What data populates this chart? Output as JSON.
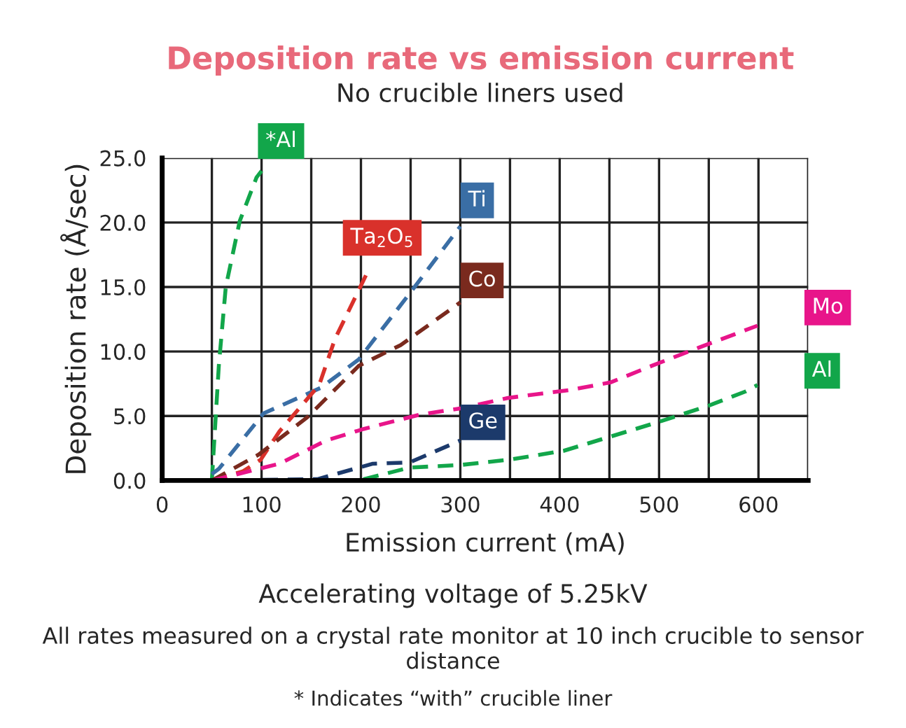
{
  "chart_data": {
    "type": "line",
    "title": "Deposition rate vs emission current",
    "subtitle": "No crucible liners used",
    "xlabel": "Emission current (mA)",
    "ylabel": "Deposition rate (Å/sec)",
    "annotations": [
      "Accelerating voltage of 5.25kV",
      "All rates measured on a crystal rate monitor at 10 inch crucible to sensor distance",
      "* Indicates “with” crucible liner"
    ],
    "xlim": [
      0,
      650
    ],
    "ylim": [
      0,
      25
    ],
    "xticks": [
      0,
      {
        "value": 50,
        "label": null
      },
      100,
      {
        "value": 150,
        "label": null
      },
      200,
      {
        "value": 250,
        "label": null
      },
      300,
      {
        "value": 350,
        "label": null
      },
      400,
      {
        "value": 450,
        "label": null
      },
      500,
      {
        "value": 550,
        "label": null
      },
      600,
      {
        "value": 650,
        "label": null
      }
    ],
    "yticks": [
      {
        "value": 0,
        "label": "0.0"
      },
      {
        "value": 5,
        "label": "5.0"
      },
      {
        "value": 10,
        "label": "10.0"
      },
      {
        "value": 15,
        "label": "15.0"
      },
      {
        "value": 20,
        "label": "20.0"
      },
      {
        "value": 25,
        "label": "25.0"
      }
    ],
    "grid": true,
    "line_style": "dashed",
    "marker": "none",
    "legend": false,
    "series": [
      {
        "name": "*Al",
        "color": "#12a64a",
        "x": [
          50,
          57,
          64,
          78,
          95,
          100
        ],
        "values": [
          0,
          8.9,
          15,
          20.1,
          23.5,
          24
        ]
      },
      {
        "name": "Ti",
        "color": "#3a6ea5",
        "x": [
          50,
          57,
          102,
          160,
          198,
          254,
          300
        ],
        "values": [
          0.5,
          0.9,
          5.2,
          7.2,
          9.4,
          15,
          19.7
        ]
      },
      {
        "name": "Ta$_{2}$O$_{5}$",
        "color": "#d9312b",
        "x": [
          50,
          81,
          99,
          118,
          158,
          174,
          188,
          205
        ],
        "values": [
          0,
          0.7,
          1.6,
          3.8,
          7.4,
          11,
          13.2,
          15.9
        ]
      },
      {
        "name": "Co",
        "color": "#7a2a1e",
        "x": [
          50,
          97,
          146,
          198,
          240,
          300
        ],
        "values": [
          0,
          2,
          4.9,
          8.9,
          10.5,
          13.8
        ]
      },
      {
        "name": "Mo",
        "color": "#e8158a",
        "x": [
          50,
          118,
          165,
          203,
          259,
          301,
          348,
          409,
          451,
          493,
          540,
          599
        ],
        "values": [
          0,
          1.3,
          3.1,
          4,
          5.1,
          5.6,
          6.4,
          7,
          7.6,
          8.9,
          10.3,
          12
        ]
      },
      {
        "name": "Ge",
        "color": "#1c3a6b",
        "x": [
          50,
          156,
          212,
          249,
          300
        ],
        "values": [
          0,
          0.1,
          1.3,
          1.4,
          3.1
        ]
      },
      {
        "name": "Al",
        "color": "#12a64a",
        "x": [
          50,
          118,
          198,
          249,
          300,
          348,
          404,
          451,
          498,
          550,
          587,
          599
        ],
        "values": [
          0,
          0,
          0,
          1,
          1.2,
          1.6,
          2.3,
          3.4,
          4.5,
          5.8,
          6.9,
          7.4
        ]
      }
    ]
  }
}
